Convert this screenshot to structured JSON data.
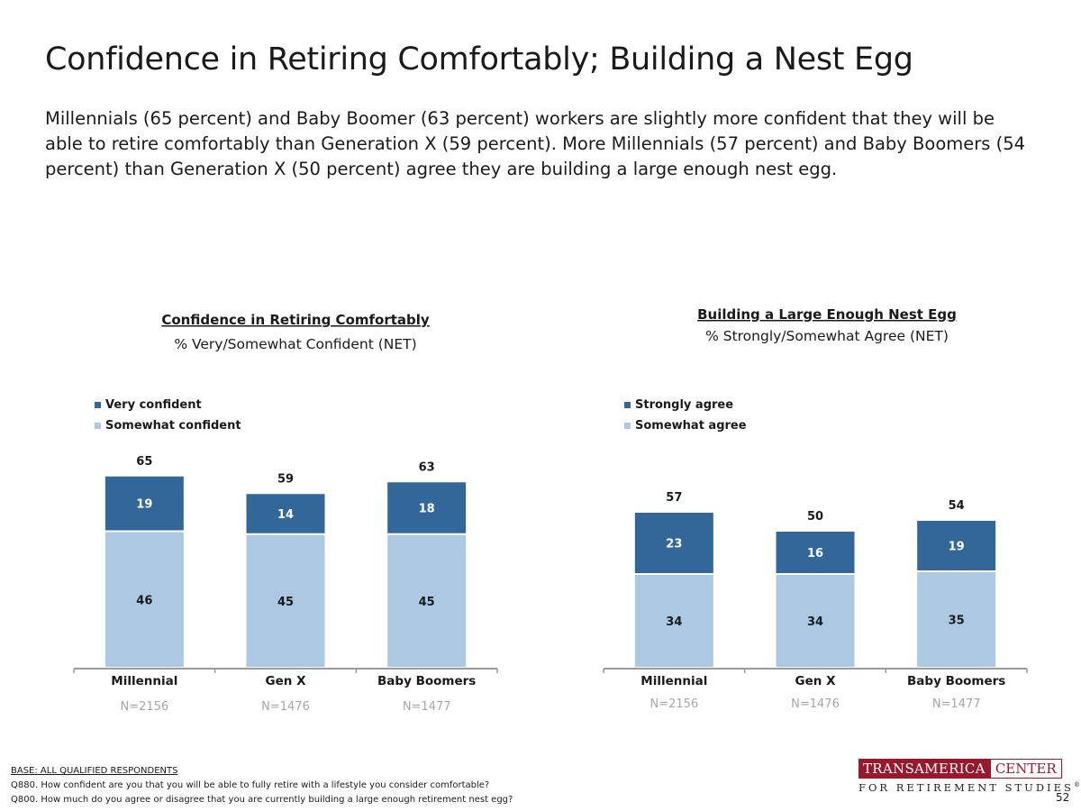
{
  "title": "Confidence in Retiring Comfortably; Building a Nest Egg",
  "subtitle": "Millennials (65 percent) and Baby Boomer (63 percent) workers are slightly more confident that they will be able to retire comfortably than Generation X (59 percent). More Millennials (57 percent) and Baby Boomers (54 percent) than Generation X (50 percent) agree they are building a large enough nest egg.",
  "colors": {
    "dark": "#336699",
    "light": "#adc8e3"
  },
  "chart_data": [
    {
      "type": "bar",
      "stacked": true,
      "title": "Confidence in Retiring Comfortably",
      "subtitle": "% Very/Somewhat Confident (NET)",
      "categories": [
        "Millennial",
        "Gen X",
        "Baby Boomers"
      ],
      "sample_sizes": [
        "N=2156",
        "N=1476",
        "N=1477"
      ],
      "series": [
        {
          "name": "Very confident",
          "values": [
            19,
            14,
            18
          ]
        },
        {
          "name": "Somewhat confident",
          "values": [
            46,
            45,
            45
          ]
        }
      ],
      "totals": [
        65,
        59,
        63
      ],
      "legend": "top-left",
      "grid": false
    },
    {
      "type": "bar",
      "stacked": true,
      "title": "Building a Large Enough Nest Egg",
      "subtitle": "% Strongly/Somewhat Agree (NET)",
      "categories": [
        "Millennial",
        "Gen X",
        "Baby Boomers"
      ],
      "sample_sizes": [
        "N=2156",
        "N=1476",
        "N=1477"
      ],
      "series": [
        {
          "name": "Strongly agree",
          "values": [
            23,
            16,
            19
          ]
        },
        {
          "name": "Somewhat agree",
          "values": [
            34,
            34,
            35
          ]
        }
      ],
      "totals": [
        57,
        50,
        54
      ],
      "legend": "top-left",
      "grid": false
    }
  ],
  "footer": {
    "base": "BASE: ALL QUALIFIED RESPONDENTS",
    "q1": "Q880. How confident are you that you will be able to fully retire with a lifestyle you consider comfortable?",
    "q2": "Q800. How much do you agree or disagree that you are currently building a large enough retirement nest egg?"
  },
  "logo": {
    "part1": "TRANSAMERICA",
    "part2": "CENTER",
    "tagline": "FOR RETIREMENT STUDIES",
    "reg": "®"
  },
  "page_number": "52"
}
